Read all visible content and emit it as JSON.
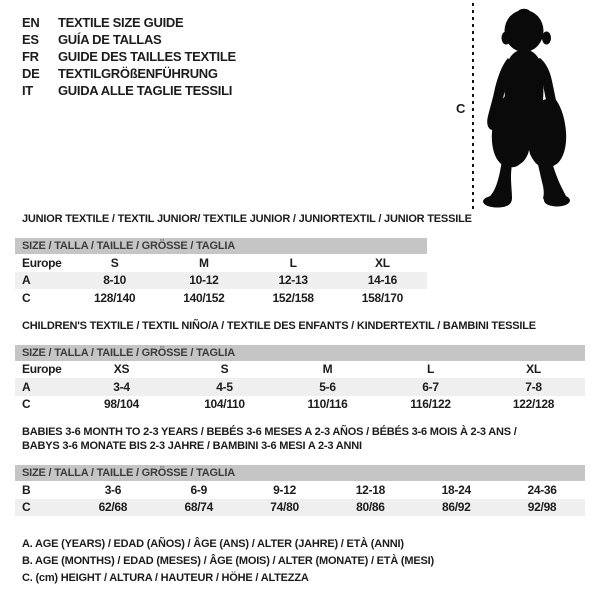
{
  "languages": [
    {
      "code": "EN",
      "label": "TEXTILE SIZE GUIDE"
    },
    {
      "code": "ES",
      "label": "GUÍA DE TALLAS"
    },
    {
      "code": "FR",
      "label": "GUIDE DES TAILLES TEXTILE"
    },
    {
      "code": "DE",
      "label": "TEXTILGRÖßENFÜHRUNG"
    },
    {
      "code": "IT",
      "label": "GUIDA ALLE TAGLIE TESSILI"
    }
  ],
  "figure": {
    "height_label": "C"
  },
  "sections": [
    {
      "title": "JUNIOR TEXTILE / TEXTIL JUNIOR/ TEXTILE JUNIOR / JUNIORTEXTIL / JUNIOR TESSILE",
      "size_header": "SIZE / TALLA / TAILLE / GRÖSSE / TAGLIA",
      "rows": [
        {
          "label": "Europe",
          "shade": false,
          "values": [
            "S",
            "M",
            "L",
            "XL"
          ]
        },
        {
          "label": "A",
          "shade": true,
          "values": [
            "8-10",
            "10-12",
            "12-13",
            "14-16"
          ]
        },
        {
          "label": "C",
          "shade": false,
          "values": [
            "128/140",
            "140/152",
            "152/158",
            "158/170"
          ]
        }
      ]
    },
    {
      "title": "CHILDREN'S TEXTILE / TEXTIL NIÑO/A / TEXTILE DES ENFANTS / KINDERTEXTIL / BAMBINI TESSILE",
      "size_header": "SIZE / TALLA / TAILLE / GRÖSSE / TAGLIA",
      "rows": [
        {
          "label": "Europe",
          "shade": false,
          "values": [
            "XS",
            "S",
            "M",
            "L",
            "XL"
          ]
        },
        {
          "label": "A",
          "shade": true,
          "values": [
            "3-4",
            "4-5",
            "5-6",
            "6-7",
            "7-8"
          ]
        },
        {
          "label": "C",
          "shade": false,
          "values": [
            "98/104",
            "104/110",
            "110/116",
            "116/122",
            "122/128"
          ]
        }
      ]
    },
    {
      "title": "BABIES 3-6 MONTH TO 2-3 YEARS / BEBÉS 3-6 MESES A 2-3 AÑOS / BÉBÉS 3-6 MOIS À 2-3 ANS / BABYS 3-6 MONATE BIS 2-3 JAHRE / BAMBINI 3-6 MESI A 2-3 ANNI",
      "size_header": "SIZE / TALLA / TAILLE / GRÖSSE / TAGLIA",
      "rows": [
        {
          "label": "B",
          "shade": false,
          "values": [
            "3-6",
            "6-9",
            "9-12",
            "12-18",
            "18-24",
            "24-36"
          ]
        },
        {
          "label": "C",
          "shade": true,
          "values": [
            "62/68",
            "68/74",
            "74/80",
            "80/86",
            "86/92",
            "92/98"
          ]
        }
      ]
    }
  ],
  "footnotes": [
    "A. AGE (YEARS) / EDAD (AÑOS) / ÂGE (ANS) / ALTER (JAHRE) / ETÀ (ANNI)",
    "B. AGE (MONTHS) / EDAD (MESES) / ÂGE (MOIS) / ALTER (MONATE) / ETÀ (MESI)",
    "C. (cm) HEIGHT / ALTURA / HAUTEUR / HÖHE / ALTEZZA"
  ],
  "colors": {
    "size_bar_bg": "#c5c5c5",
    "size_bar_text": "#3c3c3c",
    "row_shade_bg": "#efefef",
    "text": "#1c1c1c",
    "silhouette": "#0a0a0a"
  }
}
